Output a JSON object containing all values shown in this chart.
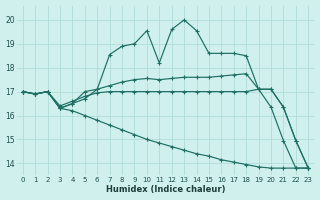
{
  "xlabel": "Humidex (Indice chaleur)",
  "background_color": "#cff0ec",
  "grid_color": "#aad8d3",
  "line_color": "#1e6e64",
  "xlim": [
    -0.5,
    23.5
  ],
  "ylim": [
    13.5,
    20.6
  ],
  "yticks": [
    14,
    15,
    16,
    17,
    18,
    19,
    20
  ],
  "xticks": [
    0,
    1,
    2,
    3,
    4,
    5,
    6,
    7,
    8,
    9,
    10,
    11,
    12,
    13,
    14,
    15,
    16,
    17,
    18,
    19,
    20,
    21,
    22,
    23
  ],
  "series_wavy_x": [
    0,
    1,
    2,
    3,
    4,
    5,
    6,
    7,
    8,
    9,
    10,
    11,
    12,
    13,
    14,
    15,
    16,
    17,
    18,
    19,
    20,
    21,
    22,
    23
  ],
  "series_wavy_y": [
    17.0,
    16.9,
    17.0,
    16.3,
    16.5,
    16.7,
    17.1,
    18.55,
    18.9,
    19.0,
    19.55,
    18.2,
    19.6,
    20.0,
    19.55,
    18.6,
    18.6,
    18.6,
    18.5,
    17.1,
    17.1,
    16.35,
    14.95,
    13.8
  ],
  "series_mid_x": [
    0,
    1,
    2,
    3,
    4,
    5,
    6,
    7,
    8,
    9,
    10,
    11,
    12,
    13,
    14,
    15,
    16,
    17,
    18,
    19,
    20,
    21,
    22,
    23
  ],
  "series_mid_y": [
    17.0,
    16.9,
    17.0,
    16.3,
    16.5,
    17.0,
    17.1,
    17.25,
    17.4,
    17.5,
    17.55,
    17.5,
    17.55,
    17.6,
    17.6,
    17.6,
    17.65,
    17.7,
    17.75,
    17.1,
    16.35,
    14.95,
    13.8,
    13.8
  ],
  "series_flat_x": [
    0,
    1,
    2,
    3,
    4,
    5,
    6,
    7,
    8,
    9,
    10,
    11,
    12,
    13,
    14,
    15,
    16,
    17,
    18,
    19,
    20,
    21,
    22,
    23
  ],
  "series_flat_y": [
    17.0,
    16.9,
    17.0,
    16.4,
    16.6,
    16.8,
    16.95,
    17.0,
    17.0,
    17.0,
    17.0,
    17.0,
    17.0,
    17.0,
    17.0,
    17.0,
    17.0,
    17.0,
    17.0,
    17.1,
    17.1,
    16.35,
    14.95,
    13.8
  ],
  "series_diag_x": [
    0,
    1,
    2,
    3,
    4,
    5,
    6,
    7,
    8,
    9,
    10,
    11,
    12,
    13,
    14,
    15,
    16,
    17,
    18,
    19,
    20,
    21,
    22,
    23
  ],
  "series_diag_y": [
    17.0,
    16.9,
    17.0,
    16.3,
    16.2,
    16.0,
    15.8,
    15.6,
    15.4,
    15.2,
    15.0,
    14.85,
    14.7,
    14.55,
    14.4,
    14.3,
    14.15,
    14.05,
    13.95,
    13.85,
    13.8,
    13.8,
    13.8,
    13.8
  ]
}
